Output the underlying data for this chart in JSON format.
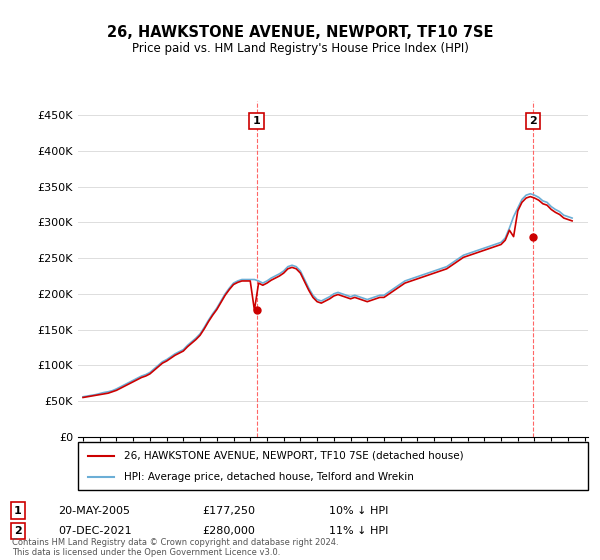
{
  "title": "26, HAWKSTONE AVENUE, NEWPORT, TF10 7SE",
  "subtitle": "Price paid vs. HM Land Registry's House Price Index (HPI)",
  "xlabel": "",
  "ylabel": "",
  "ylim": [
    0,
    470000
  ],
  "yticks": [
    0,
    50000,
    100000,
    150000,
    200000,
    250000,
    300000,
    350000,
    400000,
    450000
  ],
  "ytick_labels": [
    "£0",
    "£50K",
    "£100K",
    "£150K",
    "£200K",
    "£250K",
    "£300K",
    "£350K",
    "£400K",
    "£450K"
  ],
  "hpi_color": "#6baed6",
  "price_color": "#cc0000",
  "vline_color": "#ff6666",
  "annotation_box_color": "#cc0000",
  "background_color": "#ffffff",
  "grid_color": "#dddddd",
  "legend_entry1": "26, HAWKSTONE AVENUE, NEWPORT, TF10 7SE (detached house)",
  "legend_entry2": "HPI: Average price, detached house, Telford and Wrekin",
  "sale1_label": "1",
  "sale1_date": "20-MAY-2005",
  "sale1_price": "£177,250",
  "sale1_hpi": "10% ↓ HPI",
  "sale1_year": 2005.38,
  "sale1_value": 177250,
  "sale2_label": "2",
  "sale2_date": "07-DEC-2021",
  "sale2_price": "£280,000",
  "sale2_hpi": "11% ↓ HPI",
  "sale2_year": 2021.92,
  "sale2_value": 280000,
  "footer": "Contains HM Land Registry data © Crown copyright and database right 2024.\nThis data is licensed under the Open Government Licence v3.0.",
  "hpi_data_years": [
    1995.0,
    1995.25,
    1995.5,
    1995.75,
    1996.0,
    1996.25,
    1996.5,
    1996.75,
    1997.0,
    1997.25,
    1997.5,
    1997.75,
    1998.0,
    1998.25,
    1998.5,
    1998.75,
    1999.0,
    1999.25,
    1999.5,
    1999.75,
    2000.0,
    2000.25,
    2000.5,
    2000.75,
    2001.0,
    2001.25,
    2001.5,
    2001.75,
    2002.0,
    2002.25,
    2002.5,
    2002.75,
    2003.0,
    2003.25,
    2003.5,
    2003.75,
    2004.0,
    2004.25,
    2004.5,
    2004.75,
    2005.0,
    2005.25,
    2005.5,
    2005.75,
    2006.0,
    2006.25,
    2006.5,
    2006.75,
    2007.0,
    2007.25,
    2007.5,
    2007.75,
    2008.0,
    2008.25,
    2008.5,
    2008.75,
    2009.0,
    2009.25,
    2009.5,
    2009.75,
    2010.0,
    2010.25,
    2010.5,
    2010.75,
    2011.0,
    2011.25,
    2011.5,
    2011.75,
    2012.0,
    2012.25,
    2012.5,
    2012.75,
    2013.0,
    2013.25,
    2013.5,
    2013.75,
    2014.0,
    2014.25,
    2014.5,
    2014.75,
    2015.0,
    2015.25,
    2015.5,
    2015.75,
    2016.0,
    2016.25,
    2016.5,
    2016.75,
    2017.0,
    2017.25,
    2017.5,
    2017.75,
    2018.0,
    2018.25,
    2018.5,
    2018.75,
    2019.0,
    2019.25,
    2019.5,
    2019.75,
    2020.0,
    2020.25,
    2020.5,
    2020.75,
    2021.0,
    2021.25,
    2021.5,
    2021.75,
    2022.0,
    2022.25,
    2022.5,
    2022.75,
    2023.0,
    2023.25,
    2023.5,
    2023.75,
    2024.0,
    2024.25
  ],
  "hpi_data_values": [
    56000,
    57000,
    58000,
    59000,
    60500,
    62000,
    63000,
    64500,
    67000,
    70000,
    73000,
    76000,
    79000,
    82000,
    85000,
    87000,
    90000,
    95000,
    100000,
    105000,
    108000,
    112000,
    116000,
    119000,
    122000,
    128000,
    133000,
    138000,
    144000,
    153000,
    163000,
    172000,
    180000,
    190000,
    200000,
    208000,
    215000,
    218000,
    220000,
    220000,
    220000,
    220000,
    218000,
    215000,
    218000,
    222000,
    225000,
    228000,
    232000,
    238000,
    240000,
    238000,
    232000,
    220000,
    208000,
    198000,
    192000,
    190000,
    193000,
    196000,
    200000,
    202000,
    200000,
    198000,
    196000,
    198000,
    196000,
    194000,
    192000,
    194000,
    196000,
    198000,
    198000,
    202000,
    206000,
    210000,
    214000,
    218000,
    220000,
    222000,
    224000,
    226000,
    228000,
    230000,
    232000,
    234000,
    236000,
    238000,
    242000,
    246000,
    250000,
    254000,
    256000,
    258000,
    260000,
    262000,
    264000,
    266000,
    268000,
    270000,
    272000,
    278000,
    292000,
    308000,
    320000,
    332000,
    338000,
    340000,
    338000,
    335000,
    330000,
    328000,
    322000,
    318000,
    315000,
    310000,
    308000,
    306000
  ],
  "price_data_years": [
    1995.0,
    1995.25,
    1995.5,
    1995.75,
    1996.0,
    1996.25,
    1996.5,
    1996.75,
    1997.0,
    1997.25,
    1997.5,
    1997.75,
    1998.0,
    1998.25,
    1998.5,
    1998.75,
    1999.0,
    1999.25,
    1999.5,
    1999.75,
    2000.0,
    2000.25,
    2000.5,
    2000.75,
    2001.0,
    2001.25,
    2001.5,
    2001.75,
    2002.0,
    2002.25,
    2002.5,
    2002.75,
    2003.0,
    2003.25,
    2003.5,
    2003.75,
    2004.0,
    2004.25,
    2004.5,
    2004.75,
    2005.0,
    2005.25,
    2005.5,
    2005.75,
    2006.0,
    2006.25,
    2006.5,
    2006.75,
    2007.0,
    2007.25,
    2007.5,
    2007.75,
    2008.0,
    2008.25,
    2008.5,
    2008.75,
    2009.0,
    2009.25,
    2009.5,
    2009.75,
    2010.0,
    2010.25,
    2010.5,
    2010.75,
    2011.0,
    2011.25,
    2011.5,
    2011.75,
    2012.0,
    2012.25,
    2012.5,
    2012.75,
    2013.0,
    2013.25,
    2013.5,
    2013.75,
    2014.0,
    2014.25,
    2014.5,
    2014.75,
    2015.0,
    2015.25,
    2015.5,
    2015.75,
    2016.0,
    2016.25,
    2016.5,
    2016.75,
    2017.0,
    2017.25,
    2017.5,
    2017.75,
    2018.0,
    2018.25,
    2018.5,
    2018.75,
    2019.0,
    2019.25,
    2019.5,
    2019.75,
    2020.0,
    2020.25,
    2020.5,
    2020.75,
    2021.0,
    2021.25,
    2021.5,
    2021.75,
    2022.0,
    2022.25,
    2022.5,
    2022.75,
    2023.0,
    2023.25,
    2023.5,
    2023.75,
    2024.0,
    2024.25
  ],
  "price_data_values": [
    55000,
    56000,
    57000,
    58000,
    59000,
    60000,
    61000,
    63000,
    65000,
    68000,
    71000,
    74000,
    77000,
    80000,
    83000,
    85000,
    88000,
    93000,
    98000,
    103000,
    106000,
    110000,
    114000,
    117000,
    120000,
    126000,
    131000,
    136000,
    142000,
    151000,
    161000,
    170000,
    178000,
    188000,
    198000,
    206000,
    213000,
    216000,
    218000,
    218000,
    218000,
    177250,
    215000,
    212000,
    215000,
    219000,
    222000,
    225000,
    229000,
    235000,
    237000,
    235000,
    229000,
    217000,
    205000,
    195000,
    189000,
    187000,
    190000,
    193000,
    197000,
    199000,
    197000,
    195000,
    193000,
    195000,
    193000,
    191000,
    189000,
    191000,
    193000,
    195000,
    195000,
    199000,
    203000,
    207000,
    211000,
    215000,
    217000,
    219000,
    221000,
    223000,
    225000,
    227000,
    229000,
    231000,
    233000,
    235000,
    239000,
    243000,
    247000,
    251000,
    253000,
    255000,
    257000,
    259000,
    261000,
    263000,
    265000,
    267000,
    269000,
    275000,
    289000,
    280000,
    316000,
    328000,
    334000,
    336000,
    334000,
    331000,
    326000,
    324000,
    318000,
    314000,
    311000,
    306000,
    304000,
    302000
  ]
}
